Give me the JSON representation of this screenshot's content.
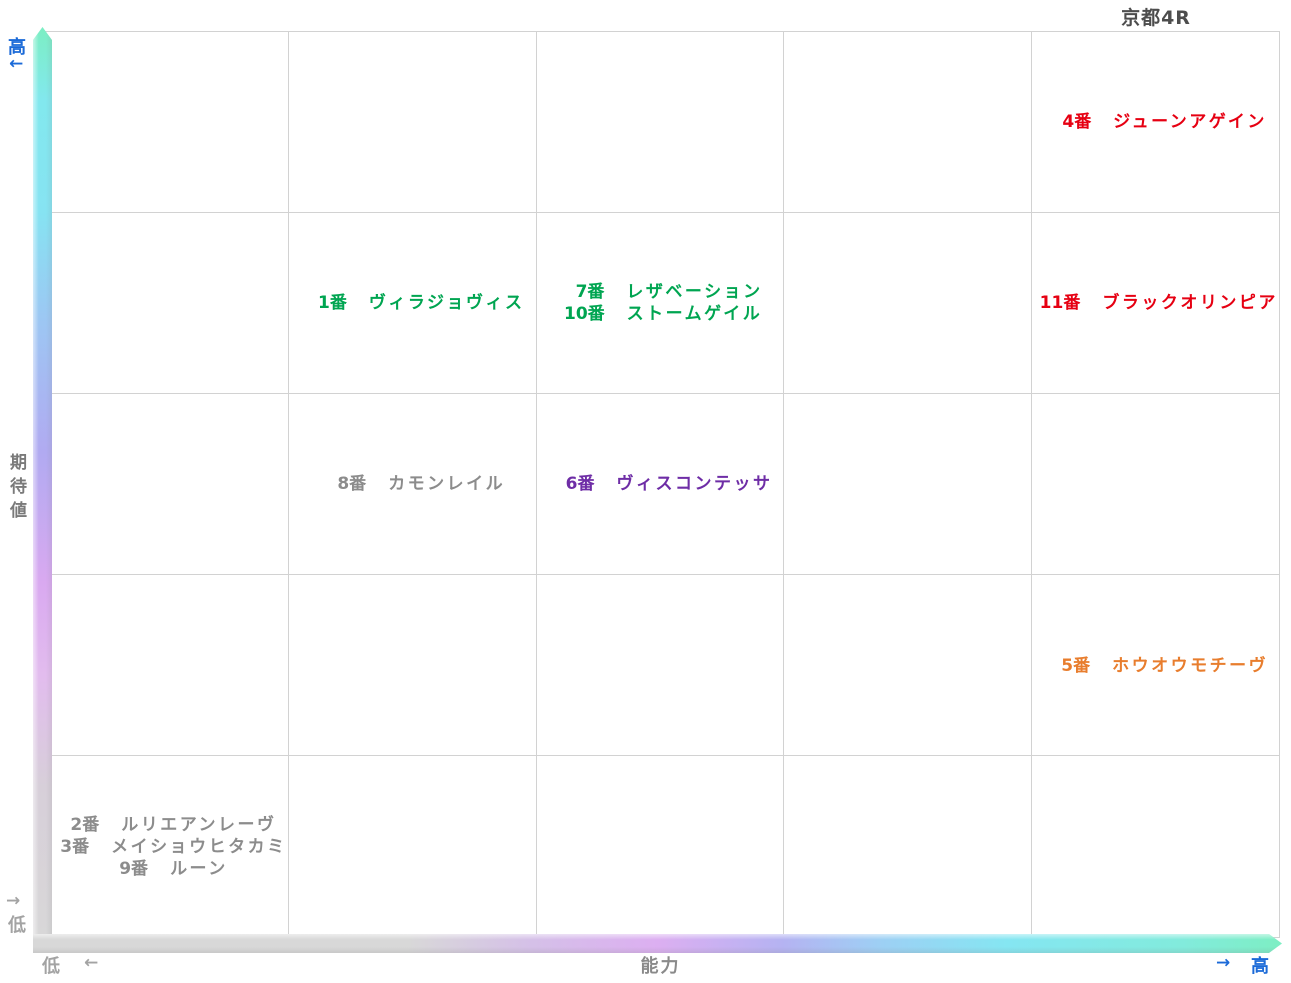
{
  "title": "京都4R",
  "axes": {
    "y": {
      "title": "期待値",
      "title_chars": [
        "期",
        "待",
        "値"
      ],
      "high_label": "高",
      "high_arrow": "←",
      "low_label": "低",
      "low_arrow": "→",
      "high_color": "#1b6ad8",
      "low_color": "#a3a3a3"
    },
    "x": {
      "title": "能力",
      "high_label": "高",
      "high_arrow": "→",
      "low_label": "低",
      "low_arrow": "←",
      "high_color": "#1b6ad8",
      "low_color": "#a3a3a3"
    }
  },
  "colors": {
    "title_text": "#4d4d4d",
    "grid_line": "#d2d2d2",
    "entry_red": "#e60012",
    "entry_green": "#00a551",
    "entry_purple": "#6e2da6",
    "entry_orange": "#e87d2d",
    "entry_gray": "#8c8c8c",
    "bar_mint": "#7ceec3",
    "bar_cyan": "#85e6f2",
    "bar_blue": "#9dc6f3",
    "bar_lavender": "#b1aaf1",
    "bar_pink": "#dcaff1",
    "bar_gray": "#d8d8d8"
  },
  "chart_data": {
    "type": "scatter",
    "title": "京都4R",
    "xlabel": "能力",
    "ylabel": "期待値",
    "x_axis": {
      "low": "低",
      "high": "高"
    },
    "y_axis": {
      "low": "低",
      "high": "高"
    },
    "grid": {
      "cols": 5,
      "rows": 5,
      "note": "row 1 = highest 期待値 (top), col 5 = highest 能力 (right)"
    },
    "points": [
      {
        "row": 1,
        "col": 5,
        "color": "#e60012",
        "horses": [
          {
            "num": "4番",
            "name": "ジューンアゲイン"
          }
        ]
      },
      {
        "row": 2,
        "col": 2,
        "color": "#00a551",
        "horses": [
          {
            "num": "1番",
            "name": "ヴィラジョヴィス"
          }
        ]
      },
      {
        "row": 2,
        "col": 3,
        "color": "#00a551",
        "horses": [
          {
            "num": "7番",
            "name": "レザベーション"
          },
          {
            "num": "10番",
            "name": "ストームゲイル"
          }
        ]
      },
      {
        "row": 2,
        "col": 5,
        "color": "#e60012",
        "horses": [
          {
            "num": "11番",
            "name": "ブラックオリンピア"
          }
        ]
      },
      {
        "row": 3,
        "col": 2,
        "color": "#8c8c8c",
        "horses": [
          {
            "num": "8番",
            "name": "カモンレイル"
          }
        ]
      },
      {
        "row": 3,
        "col": 3,
        "color": "#6e2da6",
        "horses": [
          {
            "num": "6番",
            "name": "ヴィスコンテッサ"
          }
        ]
      },
      {
        "row": 4,
        "col": 5,
        "color": "#e87d2d",
        "horses": [
          {
            "num": "5番",
            "name": "ホウオウモチーヴ"
          }
        ]
      },
      {
        "row": 5,
        "col": 1,
        "color": "#8c8c8c",
        "horses": [
          {
            "num": "2番",
            "name": "ルリエアンレーヴ"
          },
          {
            "num": "3番",
            "name": "メイショウヒタカミ"
          },
          {
            "num": "9番",
            "name": "ルーン"
          }
        ]
      }
    ]
  }
}
